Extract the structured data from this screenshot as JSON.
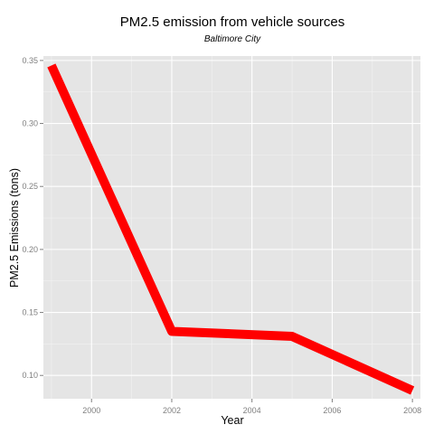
{
  "chart_data": {
    "type": "line",
    "title": "PM2.5 emission from  vehicle sources",
    "subtitle": "Baltimore City",
    "xlabel": "Year",
    "ylabel": "PM2.5 Emissions (tons)",
    "xlim": [
      1998.8,
      2008.2
    ],
    "ylim": [
      0.0815,
      0.3535
    ],
    "x_ticks": [
      2000,
      2002,
      2004,
      2006,
      2008
    ],
    "y_ticks": [
      0.1,
      0.15,
      0.2,
      0.25,
      0.3,
      0.35
    ],
    "x_tick_labels": [
      "2000",
      "2002",
      "2004",
      "2006",
      "2008"
    ],
    "y_tick_labels": [
      "0.10",
      "0.15",
      "0.20",
      "0.25",
      "0.30",
      "0.35"
    ],
    "grid": true,
    "legend": "none",
    "series": [
      {
        "x": [
          1999,
          2002,
          2005,
          2008
        ],
        "y": [
          0.346,
          0.135,
          0.131,
          0.088
        ],
        "color": "#ff0000"
      }
    ],
    "colors": {
      "panel_background": "#e5e5e5",
      "major_grid": "#ffffff",
      "minor_grid": "#f2f2f2",
      "tick_mark": "#7f7f7f"
    }
  }
}
